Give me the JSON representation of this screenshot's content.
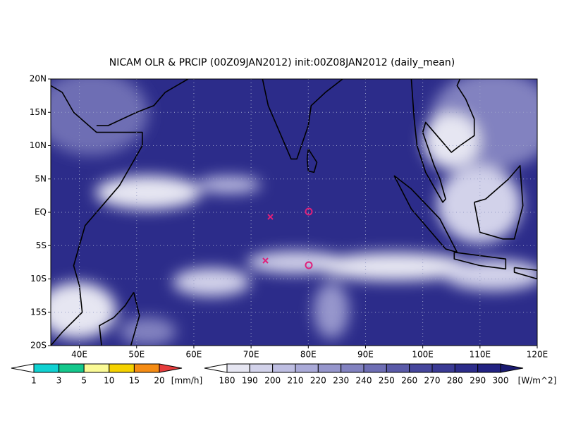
{
  "title": "NICAM OLR & PRCIP (00Z09JAN2012) init:00Z08JAN2012 (daily_mean)",
  "map": {
    "lat_labels": [
      "20N",
      "15N",
      "10N",
      "5N",
      "EQ",
      "5S",
      "10S",
      "15S",
      "20S"
    ],
    "lon_labels": [
      "40E",
      "50E",
      "60E",
      "70E",
      "80E",
      "90E",
      "100E",
      "110E",
      "120E"
    ]
  },
  "precip_colorbar": {
    "labels": [
      1,
      3,
      5,
      10,
      15,
      20
    ],
    "unit": "[mm/h]",
    "colors": [
      "#ffffff",
      "#10d2d2",
      "#14c88c",
      "#fafa96",
      "#f5d200",
      "#f58c14",
      "#e63c3c"
    ]
  },
  "olr_colorbar": {
    "labels": [
      180,
      190,
      200,
      210,
      220,
      230,
      240,
      250,
      260,
      270,
      280,
      290,
      300
    ],
    "unit": "[W/m^2]",
    "colors": [
      "#ffffff",
      "#e6e6f2",
      "#d2d2ea",
      "#bebee2",
      "#aaaad8",
      "#9696cc",
      "#8282c0",
      "#6e6eb4",
      "#5a5aa8",
      "#46469c",
      "#3a3a94",
      "#2c2c8a",
      "#222282",
      "#1a1a70"
    ]
  }
}
